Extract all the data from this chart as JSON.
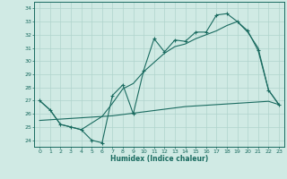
{
  "xlabel": "Humidex (Indice chaleur)",
  "xlim": [
    -0.5,
    23.5
  ],
  "ylim": [
    23.5,
    34.5
  ],
  "yticks": [
    24,
    25,
    26,
    27,
    28,
    29,
    30,
    31,
    32,
    33,
    34
  ],
  "xticks": [
    0,
    1,
    2,
    3,
    4,
    5,
    6,
    7,
    8,
    9,
    10,
    11,
    12,
    13,
    14,
    15,
    16,
    17,
    18,
    19,
    20,
    21,
    22,
    23
  ],
  "background_color": "#d0eae4",
  "grid_color": "#b0d4cc",
  "line_color": "#1a6b60",
  "line1_y": [
    27.0,
    26.3,
    25.2,
    25.0,
    24.8,
    24.0,
    23.8,
    27.4,
    28.2,
    26.0,
    29.3,
    31.7,
    30.7,
    31.6,
    31.5,
    32.2,
    32.2,
    33.5,
    33.6,
    33.0,
    32.3,
    30.8,
    27.8,
    26.7
  ],
  "line2_y": [
    27.0,
    26.3,
    25.2,
    25.0,
    24.8,
    25.3,
    25.8,
    26.8,
    27.9,
    28.3,
    29.2,
    29.9,
    30.6,
    31.1,
    31.3,
    31.7,
    32.0,
    32.3,
    32.7,
    33.0,
    32.2,
    31.0,
    27.8,
    26.7
  ],
  "line3_y": [
    25.5,
    25.55,
    25.6,
    25.65,
    25.7,
    25.75,
    25.8,
    25.85,
    25.95,
    26.05,
    26.15,
    26.25,
    26.35,
    26.45,
    26.55,
    26.6,
    26.65,
    26.7,
    26.75,
    26.8,
    26.85,
    26.9,
    26.95,
    26.7
  ]
}
